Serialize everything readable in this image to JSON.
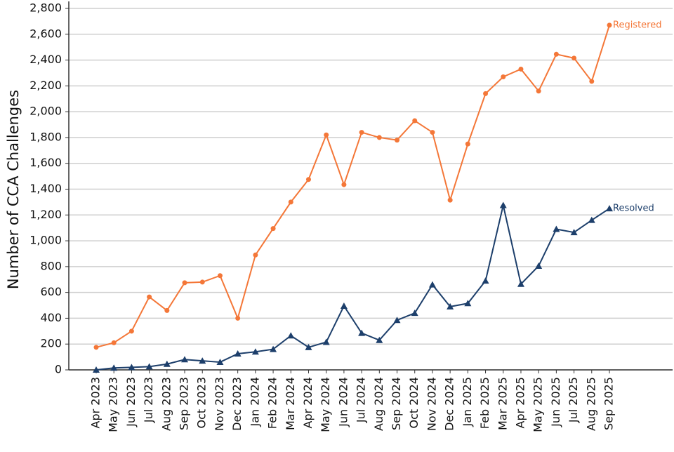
{
  "chart_data": {
    "type": "line",
    "y_label": "Number of CCA Challenges",
    "categories": [
      "Apr 2023",
      "May 2023",
      "Jun 2023",
      "Jul 2023",
      "Aug 2023",
      "Sep 2023",
      "Oct 2023",
      "Nov 2023",
      "Dec 2023",
      "Jan 2024",
      "Feb 2024",
      "Mar 2024",
      "Apr 2024",
      "May 2024",
      "Jun 2024",
      "Jul 2024",
      "Aug 2024",
      "Sep 2024",
      "Oct 2024",
      "Nov 2024",
      "Dec 2024",
      "Jan 2025",
      "Feb 2025",
      "Mar 2025",
      "Apr 2025",
      "May 2025",
      "Jun 2025",
      "Jul 2025",
      "Aug 2025",
      "Sep 2025"
    ],
    "series": [
      {
        "name": "Registered",
        "color": "#f47738",
        "marker": "circle",
        "values": [
          175,
          210,
          300,
          565,
          460,
          675,
          680,
          730,
          400,
          890,
          1095,
          1300,
          1475,
          1820,
          1435,
          1840,
          1800,
          1780,
          1930,
          1840,
          1315,
          1750,
          2140,
          2270,
          2330,
          2160,
          2445,
          2415,
          2235,
          2670
        ]
      },
      {
        "name": "Resolved",
        "color": "#1d3f6b",
        "marker": "triangle",
        "values": [
          0,
          15,
          20,
          25,
          45,
          80,
          70,
          60,
          125,
          140,
          160,
          265,
          175,
          215,
          495,
          285,
          230,
          385,
          440,
          660,
          490,
          515,
          690,
          1275,
          665,
          805,
          1090,
          1065,
          1160,
          1250
        ]
      }
    ],
    "ylim": [
      0,
      2800
    ],
    "yticks": [
      0,
      200,
      400,
      600,
      800,
      {
        "value": 1000,
        "label": "1,000"
      },
      {
        "value": 1200,
        "label": "1,200"
      },
      {
        "value": 1400,
        "label": "1,400"
      },
      {
        "value": 1600,
        "label": "1,600"
      },
      {
        "value": 1800,
        "label": "1,800"
      },
      {
        "value": 2000,
        "label": "2,000"
      },
      {
        "value": 2200,
        "label": "2,200"
      },
      {
        "value": 2400,
        "label": "2,400"
      },
      {
        "value": 2600,
        "label": "2,600"
      },
      {
        "value": 2800,
        "label": "2,800"
      }
    ],
    "grid": true
  }
}
